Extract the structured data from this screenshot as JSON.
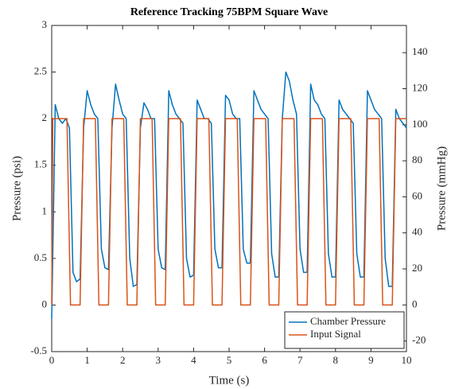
{
  "chart_data": {
    "type": "line",
    "title": "Reference Tracking 75BPM Square Wave",
    "x_label": "Time (s)",
    "y_label": "Pressure (psi)",
    "y2_label": "Pressure (mmHg)",
    "xlim": [
      0,
      10
    ],
    "xticks": [
      0,
      1,
      2,
      3,
      4,
      5,
      6,
      7,
      8,
      9,
      10
    ],
    "ylim": [
      -0.5,
      3
    ],
    "yticks": [
      -0.5,
      0,
      0.5,
      1,
      1.5,
      2,
      2.5,
      3
    ],
    "y2lim": [
      -25.9,
      155.1
    ],
    "y2ticks": [
      -20,
      0,
      20,
      40,
      60,
      80,
      100,
      120,
      140
    ],
    "legend": "lower right",
    "series": [
      {
        "name": "Chamber Pressure",
        "color": "#0072bd",
        "x": [
          0,
          0.1,
          0.2,
          0.3,
          0.4,
          0.5,
          0.6,
          0.7,
          0.8,
          0.9,
          1,
          1.1,
          1.2,
          1.3,
          1.4,
          1.5,
          1.6,
          1.7,
          1.8,
          1.9,
          2,
          2.1,
          2.2,
          2.3,
          2.4,
          2.5,
          2.6,
          2.7,
          2.8,
          2.9,
          3,
          3.1,
          3.2,
          3.3,
          3.4,
          3.5,
          3.6,
          3.7,
          3.8,
          3.9,
          4,
          4.1,
          4.2,
          4.3,
          4.4,
          4.5,
          4.6,
          4.7,
          4.8,
          4.9,
          5,
          5.1,
          5.2,
          5.3,
          5.4,
          5.5,
          5.6,
          5.7,
          5.8,
          5.9,
          6,
          6.1,
          6.2,
          6.3,
          6.4,
          6.5,
          6.6,
          6.7,
          6.8,
          6.9,
          7,
          7.1,
          7.2,
          7.3,
          7.4,
          7.5,
          7.6,
          7.7,
          7.8,
          7.9,
          8,
          8.1,
          8.2,
          8.3,
          8.4,
          8.5,
          8.6,
          8.7,
          8.8,
          8.9,
          9,
          9.1,
          9.2,
          9.3,
          9.4,
          9.5,
          9.6,
          9.7,
          9.8,
          9.9,
          10
        ],
        "values": [
          -0.15,
          2.15,
          2.0,
          1.95,
          2.0,
          1.9,
          0.35,
          0.25,
          0.28,
          1.9,
          2.3,
          2.15,
          2.05,
          2.0,
          0.6,
          0.4,
          0.38,
          1.9,
          2.37,
          2.2,
          2.05,
          2.0,
          0.5,
          0.2,
          0.22,
          1.9,
          2.17,
          2.1,
          2.0,
          2.0,
          0.6,
          0.4,
          0.38,
          2.3,
          2.15,
          2.05,
          2.0,
          1.95,
          0.5,
          0.3,
          0.32,
          2.2,
          2.1,
          2.0,
          2.0,
          1.95,
          0.6,
          0.4,
          0.4,
          2.25,
          2.2,
          2.05,
          2.0,
          2.0,
          0.6,
          0.45,
          0.45,
          2.3,
          2.2,
          2.1,
          2.05,
          2.0,
          0.55,
          0.3,
          0.3,
          2.0,
          2.5,
          2.4,
          2.2,
          2.05,
          0.6,
          0.35,
          0.35,
          2.37,
          2.2,
          2.15,
          2.05,
          2.0,
          0.55,
          0.3,
          0.3,
          2.2,
          2.1,
          2.05,
          2.0,
          1.95,
          0.55,
          0.3,
          0.3,
          2.3,
          2.2,
          2.1,
          2.05,
          2.0,
          0.5,
          0.2,
          0.2,
          2.1,
          2.0,
          1.95,
          1.9
        ]
      },
      {
        "name": "Input Signal",
        "color": "#d95319",
        "x": [
          0,
          0.03,
          0.43,
          0.53,
          0.8,
          0.9,
          1.23,
          1.33,
          1.6,
          1.7,
          2.03,
          2.13,
          2.4,
          2.5,
          2.83,
          2.93,
          3.2,
          3.3,
          3.63,
          3.73,
          4.0,
          4.1,
          4.43,
          4.53,
          4.8,
          4.9,
          5.23,
          5.33,
          5.6,
          5.7,
          6.03,
          6.13,
          6.4,
          6.5,
          6.83,
          6.93,
          7.2,
          7.3,
          7.63,
          7.73,
          8.0,
          8.1,
          8.43,
          8.53,
          8.8,
          8.9,
          9.23,
          9.33,
          9.6,
          9.7,
          10
        ],
        "values": [
          0,
          2,
          2,
          0,
          0,
          2,
          2,
          0,
          0,
          2,
          2,
          0,
          0,
          2,
          2,
          0,
          0,
          2,
          2,
          0,
          0,
          2,
          2,
          0,
          0,
          2,
          2,
          0,
          0,
          2,
          2,
          0,
          0,
          2,
          2,
          0,
          0,
          2,
          2,
          0,
          0,
          2,
          2,
          0,
          0,
          2,
          2,
          0,
          0,
          2,
          2
        ]
      }
    ]
  }
}
